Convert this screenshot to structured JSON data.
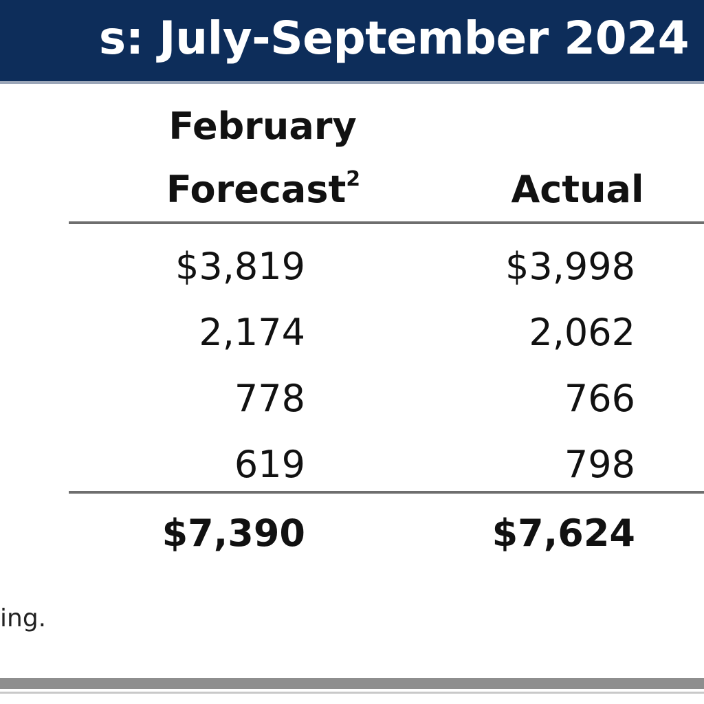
{
  "title": "s: July-September 2024",
  "headers": {
    "forecast_line1": "February",
    "forecast_line2": "Forecast",
    "forecast_superscript": "2",
    "actual": "Actual"
  },
  "rows": [
    {
      "forecast": "$3,819",
      "actual": "$3,998"
    },
    {
      "forecast": "2,174",
      "actual": "2,062"
    },
    {
      "forecast": "778",
      "actual": "766"
    },
    {
      "forecast": "619",
      "actual": "798"
    }
  ],
  "total": {
    "forecast": "$7,390",
    "actual": "$7,624"
  },
  "footnote": "ing.",
  "colors": {
    "title_bar": "#0d2d5a",
    "title_text": "#ffffff",
    "rule": "#6e6e6e"
  }
}
